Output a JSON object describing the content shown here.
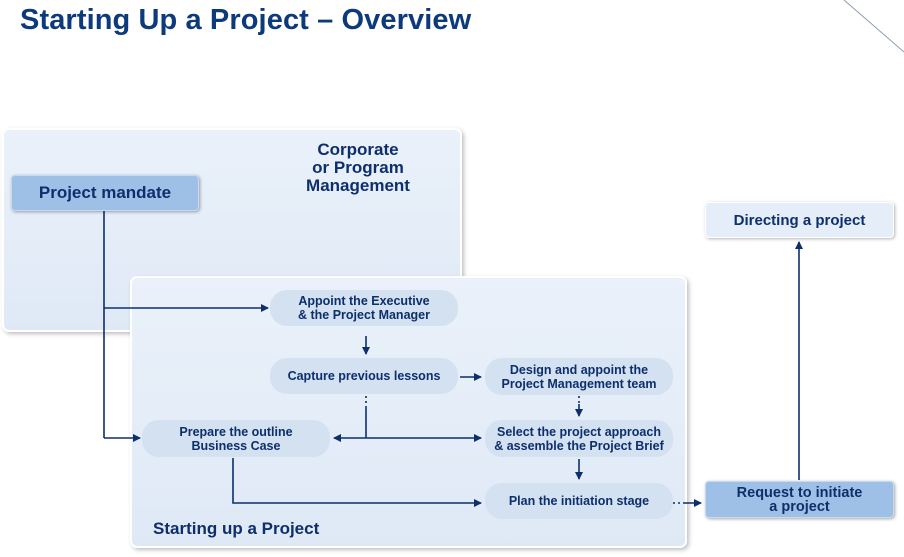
{
  "title": "Starting Up a Project – Overview",
  "corporate_label": [
    "Corporate",
    "or Program",
    "Management"
  ],
  "startup_label": "Starting up a Project",
  "boxes": {
    "project_mandate": "Project mandate",
    "directing": "Directing a project",
    "request": [
      "Request to initiate",
      "a project"
    ],
    "appoint": [
      "Appoint the Executive",
      "& the Project Manager"
    ],
    "capture": "Capture previous lessons",
    "design": [
      "Design and appoint the",
      "Project Management team"
    ],
    "outline": [
      "Prepare the outline",
      "Business Case"
    ],
    "select": [
      "Select the project approach",
      "& assemble the Project Brief"
    ],
    "plan": "Plan the initiation stage"
  },
  "colors": {
    "accent_text": "#0d3a7a",
    "arrow": "#0d2f6b",
    "mandate_fill": "#9fc0e6",
    "process_fill": "#d3e1f1",
    "panel_fill": "#e6eef9"
  }
}
